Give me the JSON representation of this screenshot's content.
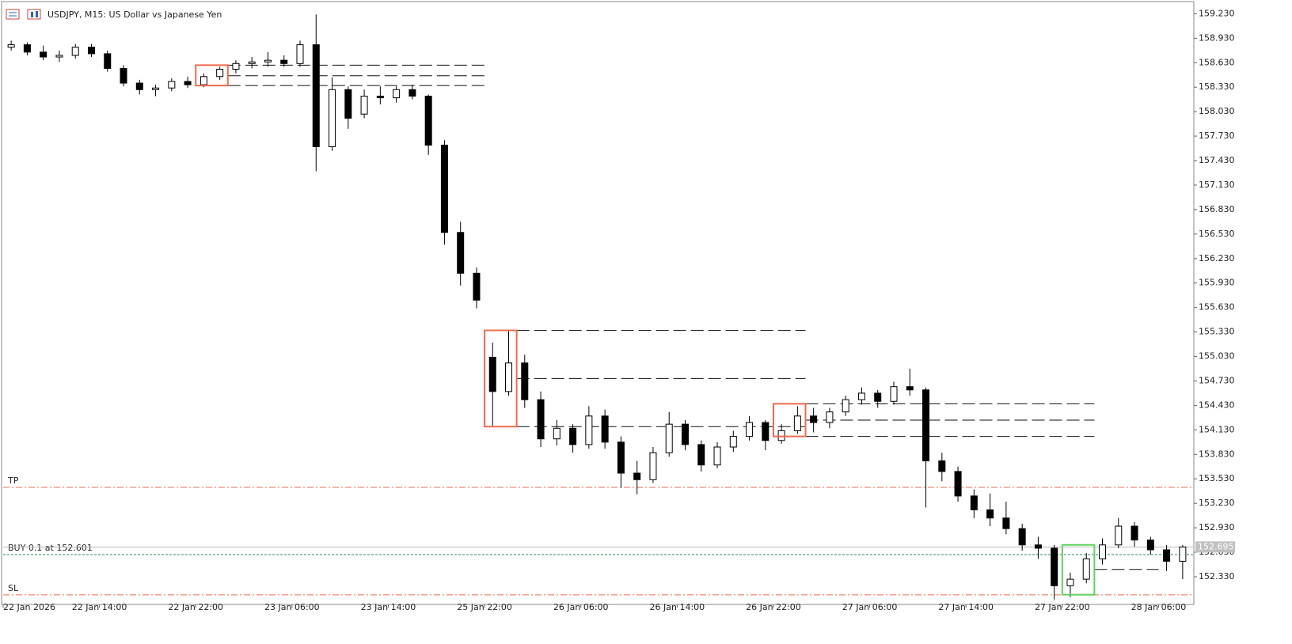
{
  "chart_data": {
    "type": "candlestick",
    "title": "USDJPY, M15:  US Dollar vs Japanese Yen",
    "categories": [
      "22 Jan 2026",
      null,
      null,
      null,
      null,
      null,
      "22 Jan 14:00",
      null,
      null,
      null,
      null,
      null,
      "22 Jan 22:00",
      null,
      null,
      null,
      null,
      null,
      "23 Jan 06:00",
      null,
      null,
      null,
      null,
      null,
      "23 Jan 14:00",
      null,
      null,
      null,
      null,
      null,
      "25 Jan 22:00",
      null,
      null,
      null,
      null,
      null,
      "26 Jan 06:00",
      null,
      null,
      null,
      null,
      null,
      "26 Jan 14:00",
      null,
      null,
      null,
      null,
      null,
      "26 Jan 22:00",
      null,
      null,
      null,
      null,
      null,
      "27 Jan 06:00",
      null,
      null,
      null,
      null,
      null,
      "27 Jan 14:00",
      null,
      null,
      null,
      null,
      null,
      "27 Jan 22:00",
      null,
      null,
      null,
      null,
      null,
      "28 Jan 06:00",
      null
    ],
    "open": [
      158.82,
      158.85,
      158.76,
      158.7,
      158.72,
      158.82,
      158.74,
      158.56,
      158.38,
      158.3,
      158.32,
      158.4,
      158.36,
      158.46,
      158.55,
      158.62,
      158.64,
      158.66,
      158.62,
      158.85,
      157.6,
      158.3,
      158.0,
      158.22,
      158.2,
      158.3,
      158.22,
      157.62,
      156.55,
      156.05,
      155.02,
      154.6,
      154.95,
      154.5,
      154.02,
      154.15,
      153.95,
      154.3,
      153.98,
      153.6,
      153.52,
      153.85,
      154.2,
      153.95,
      153.7,
      153.92,
      154.05,
      154.22,
      154.0,
      154.12,
      154.3,
      154.22,
      154.35,
      154.5,
      154.58,
      154.48,
      154.66,
      154.62,
      153.75,
      153.62,
      153.32,
      153.15,
      153.05,
      152.92,
      152.72,
      152.68,
      152.22,
      152.3,
      152.55,
      152.72,
      152.95,
      152.78,
      152.66,
      152.52
    ],
    "high": [
      158.9,
      158.88,
      158.84,
      158.78,
      158.86,
      158.86,
      158.78,
      158.6,
      158.42,
      158.36,
      158.44,
      158.46,
      158.5,
      158.58,
      158.66,
      158.7,
      158.76,
      158.72,
      158.9,
      159.22,
      158.45,
      158.34,
      158.3,
      158.34,
      158.34,
      158.36,
      158.24,
      157.68,
      156.68,
      156.12,
      155.2,
      155.35,
      155.05,
      154.6,
      154.25,
      154.2,
      154.42,
      154.38,
      154.05,
      153.75,
      153.92,
      154.35,
      154.25,
      154.0,
      153.98,
      154.12,
      154.3,
      154.25,
      154.2,
      154.42,
      154.4,
      154.4,
      154.55,
      154.65,
      154.62,
      154.72,
      154.88,
      154.65,
      153.85,
      153.68,
      153.4,
      153.35,
      153.25,
      152.98,
      152.82,
      152.72,
      152.38,
      152.62,
      152.8,
      153.05,
      153.0,
      152.82,
      152.72,
      152.72
    ],
    "low": [
      158.78,
      158.72,
      158.66,
      158.64,
      158.68,
      158.7,
      158.52,
      158.34,
      158.24,
      158.22,
      158.28,
      158.32,
      158.33,
      158.42,
      158.5,
      158.56,
      158.58,
      158.58,
      158.58,
      157.3,
      157.55,
      157.82,
      157.95,
      158.12,
      158.14,
      158.18,
      157.5,
      156.4,
      155.9,
      155.62,
      154.18,
      154.55,
      154.4,
      153.92,
      153.94,
      153.85,
      153.9,
      153.9,
      153.42,
      153.34,
      153.48,
      153.8,
      153.88,
      153.62,
      153.66,
      153.86,
      154.0,
      153.88,
      153.96,
      154.08,
      154.1,
      154.15,
      154.3,
      154.44,
      154.4,
      154.44,
      154.55,
      153.18,
      153.5,
      153.25,
      153.05,
      152.95,
      152.85,
      152.65,
      152.55,
      152.05,
      152.08,
      152.25,
      152.48,
      152.68,
      152.7,
      152.6,
      152.4,
      152.3
    ],
    "close": [
      158.85,
      158.76,
      158.7,
      158.72,
      158.82,
      158.74,
      158.56,
      158.38,
      158.3,
      158.32,
      158.4,
      158.36,
      158.46,
      158.55,
      158.62,
      158.64,
      158.66,
      158.62,
      158.85,
      157.6,
      158.3,
      157.95,
      158.22,
      158.2,
      158.3,
      158.22,
      157.62,
      156.55,
      156.05,
      155.72,
      154.6,
      154.95,
      154.5,
      154.02,
      154.15,
      153.95,
      154.3,
      153.98,
      153.6,
      153.52,
      153.85,
      154.2,
      153.95,
      153.7,
      153.92,
      154.05,
      154.22,
      154.0,
      154.12,
      154.3,
      154.22,
      154.35,
      154.5,
      154.58,
      154.48,
      154.66,
      154.62,
      153.75,
      153.62,
      153.32,
      153.15,
      153.05,
      152.92,
      152.72,
      152.68,
      152.22,
      152.3,
      152.55,
      152.72,
      152.95,
      152.78,
      152.66,
      152.52,
      152.695
    ],
    "ylim": [
      152.01,
      159.35
    ],
    "yticks": [
      {
        "value": 159.23,
        "label": "159.230"
      },
      {
        "value": 158.93,
        "label": "158.930"
      },
      {
        "value": 158.63,
        "label": "158.630"
      },
      {
        "value": 158.33,
        "label": "158.330"
      },
      {
        "value": 158.03,
        "label": "158.030"
      },
      {
        "value": 157.73,
        "label": "157.730"
      },
      {
        "value": 157.43,
        "label": "157.430"
      },
      {
        "value": 157.13,
        "label": "157.130"
      },
      {
        "value": 156.83,
        "label": "156.830"
      },
      {
        "value": 156.53,
        "label": "156.530"
      },
      {
        "value": 156.23,
        "label": "156.230"
      },
      {
        "value": 155.93,
        "label": "155.930"
      },
      {
        "value": 155.63,
        "label": "155.630"
      },
      {
        "value": 155.33,
        "label": "155.330"
      },
      {
        "value": 155.03,
        "label": "155.030"
      },
      {
        "value": 154.73,
        "label": "154.730"
      },
      {
        "value": 154.43,
        "label": "154.430"
      },
      {
        "value": 154.13,
        "label": "154.130"
      },
      {
        "value": 153.83,
        "label": "153.830"
      },
      {
        "value": 153.53,
        "label": "153.530"
      },
      {
        "value": 153.23,
        "label": "153.230"
      },
      {
        "value": 152.93,
        "label": "152.930"
      },
      {
        "value": 152.63,
        "label": "152.630"
      },
      {
        "value": 152.33,
        "label": "152.330"
      }
    ],
    "annotations": [
      {
        "label": "TP",
        "value": 153.426,
        "color": "#f26b4f"
      },
      {
        "label": "SL",
        "value": 152.108,
        "color": "#f26b4f"
      },
      {
        "label": "BUY 0.1 at 152.601",
        "value": 152.601,
        "color": "#2e8b57"
      }
    ],
    "zones": [
      {
        "start": 12,
        "end": 14,
        "high": 158.6,
        "low": 158.35,
        "levels": [
          158.6,
          158.47,
          158.35
        ],
        "line_end": 30,
        "color": "#f26b4f"
      },
      {
        "start": 30,
        "end": 32,
        "high": 155.35,
        "low": 154.17,
        "levels": [
          155.35,
          154.76,
          154.17
        ],
        "line_end": 50,
        "color": "#f26b4f"
      },
      {
        "start": 48,
        "end": 50,
        "high": 154.45,
        "low": 154.05,
        "levels": [
          154.45,
          154.25,
          154.05
        ],
        "line_end": 68,
        "color": "#f26b4f"
      },
      {
        "start": 66,
        "end": 68,
        "high": 152.72,
        "low": 152.11,
        "levels": [
          152.42
        ],
        "line_end": 72,
        "color": "#5fd35f"
      }
    ]
  }
}
